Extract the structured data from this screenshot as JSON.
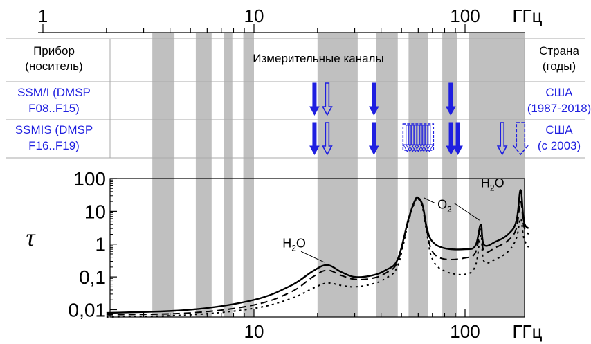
{
  "chart_data": {
    "type": "line",
    "title": "",
    "xlabel": "ГГц",
    "ylabel": "τ",
    "x_scale": "log",
    "y_scale": "log",
    "xlim": [
      2,
      200
    ],
    "ylim": [
      0.006,
      100
    ],
    "top_axis_ticks": [
      {
        "x": 1,
        "label": "1"
      },
      {
        "x": 10,
        "label": "10"
      },
      {
        "x": 100,
        "label": "100"
      }
    ],
    "bottom_axis_ticks": [
      {
        "x": 10,
        "label": "10"
      },
      {
        "x": 100,
        "label": "100"
      }
    ],
    "axis_unit_label": "ГГц",
    "y_ticks": [
      {
        "y": 100,
        "label": "100"
      },
      {
        "y": 10,
        "label": "10"
      },
      {
        "y": 1,
        "label": "1"
      },
      {
        "y": 0.1,
        "label": "0,1"
      },
      {
        "y": 0.01,
        "label": "0,01"
      }
    ],
    "bands_ghz": [
      [
        3.3,
        4.2
      ],
      [
        5.3,
        6.3
      ],
      [
        7.2,
        7.9
      ],
      [
        8.9,
        10.0
      ],
      [
        20.0,
        31.0
      ],
      [
        38.0,
        48.0
      ],
      [
        54.0,
        67.0
      ],
      [
        78.0,
        92.0
      ],
      [
        104.0,
        200.0
      ]
    ],
    "series": [
      {
        "style": "solid",
        "x": [
          2,
          5,
          10,
          15,
          19,
          22.2,
          26,
          30,
          36,
          42,
          48,
          54,
          58,
          60,
          63,
          66,
          70,
          80,
          100,
          112,
          118.75,
          123,
          140,
          160,
          175,
          183.3,
          190,
          200
        ],
        "y": [
          0.008,
          0.01,
          0.02,
          0.055,
          0.15,
          0.23,
          0.14,
          0.1,
          0.11,
          0.16,
          0.35,
          6.0,
          22.0,
          26.0,
          15.0,
          3.0,
          1.2,
          0.75,
          0.7,
          0.9,
          4.0,
          0.95,
          1.2,
          2.0,
          5.0,
          45.0,
          5.0,
          3.0
        ]
      },
      {
        "style": "dashed",
        "x": [
          2,
          5,
          10,
          15,
          19,
          22.2,
          26,
          30,
          36,
          42,
          48,
          54,
          58,
          60,
          63,
          66,
          70,
          80,
          100,
          112,
          118.75,
          123,
          140,
          160,
          175,
          183.3,
          190,
          200
        ],
        "y": [
          0.007,
          0.008,
          0.014,
          0.035,
          0.1,
          0.16,
          0.11,
          0.085,
          0.09,
          0.13,
          0.3,
          5.5,
          21.0,
          25.0,
          14.0,
          2.5,
          0.6,
          0.35,
          0.38,
          0.55,
          3.0,
          0.6,
          0.8,
          1.3,
          3.0,
          20.0,
          3.5,
          2.0
        ]
      },
      {
        "style": "dotted",
        "x": [
          2,
          5,
          10,
          15,
          19,
          22.2,
          26,
          30,
          36,
          42,
          48,
          54,
          58,
          60,
          63,
          66,
          70,
          80,
          100,
          112,
          118.75,
          123,
          140,
          160,
          175,
          183.3,
          190,
          200
        ],
        "y": [
          0.006,
          0.007,
          0.011,
          0.022,
          0.045,
          0.065,
          0.055,
          0.05,
          0.06,
          0.09,
          0.22,
          5.0,
          20.0,
          24.0,
          12.0,
          2.0,
          0.35,
          0.15,
          0.12,
          0.22,
          1.9,
          0.3,
          0.35,
          0.6,
          1.5,
          6.0,
          1.5,
          0.8
        ]
      }
    ],
    "annotations": [
      {
        "text": "H",
        "sub": "2",
        "tail": "O",
        "x": 22.2,
        "y": 0.23,
        "label_x": 15.5,
        "label_y": 0.8
      },
      {
        "text": "O",
        "sub": "2",
        "tail": "",
        "x": 60,
        "y": 26,
        "label_x": 80,
        "label_y": 12,
        "x2": 118.75,
        "y2": 4.0
      },
      {
        "text": "H",
        "sub": "2",
        "tail": "O",
        "x": 183.3,
        "y": 45,
        "label_x": 135,
        "label_y": 55
      }
    ]
  },
  "table": {
    "header_left": [
      "Прибор",
      "(носитель)"
    ],
    "header_center": "Измерительные каналы",
    "header_right": [
      "Страна",
      "(годы)"
    ],
    "rows": [
      {
        "left": [
          "SSM/I (DMSP",
          "F08..F15)"
        ],
        "right": [
          "США",
          "(1987-2018)"
        ],
        "channels": [
          {
            "ghz": 19.35,
            "style": "filled"
          },
          {
            "ghz": 22.235,
            "style": "outline"
          },
          {
            "ghz": 37.0,
            "style": "filled"
          },
          {
            "ghz": 85.5,
            "style": "filled"
          }
        ]
      },
      {
        "left": [
          "SSMIS (DMSP",
          "F16..F19)"
        ],
        "right": [
          "США",
          "(с 2003)"
        ],
        "channels": [
          {
            "ghz": 19.35,
            "style": "filled"
          },
          {
            "ghz": 22.235,
            "style": "outline"
          },
          {
            "ghz": 37.0,
            "style": "filled"
          },
          {
            "ghz": 60.0,
            "style": "group-dashed"
          },
          {
            "ghz": 89.0,
            "style": "filled-double"
          },
          {
            "ghz": 150.0,
            "style": "outline"
          },
          {
            "ghz": 183.3,
            "style": "outline-wide-dashed"
          }
        ]
      }
    ]
  },
  "colors": {
    "band": "#c0c0c0",
    "arrow": "#1f1fe0",
    "text_blue": "#1f1fe0",
    "grid": "#aaaaaa"
  }
}
